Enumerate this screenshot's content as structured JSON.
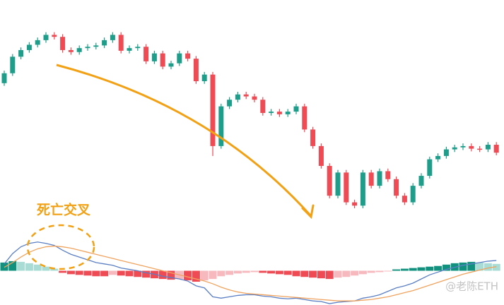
{
  "watermark": "@老陈ETH",
  "chart_data": [
    {
      "type": "candlestick",
      "ylim": [
        0,
        320
      ],
      "up_color": "#1e9e8a",
      "down_color": "#ef4b55",
      "annotations": [
        "死亡交叉"
      ],
      "open": [
        205,
        220,
        245,
        255,
        263,
        270,
        278,
        275,
        255,
        252,
        258,
        260,
        262,
        270,
        278,
        254,
        258,
        260,
        238,
        250,
        230,
        235,
        250,
        242,
        208,
        218,
        110,
        170,
        180,
        188,
        185,
        180,
        160,
        162,
        158,
        162,
        170,
        135,
        110,
        80,
        35,
        70,
        25,
        20,
        70,
        50,
        72,
        60,
        35,
        25,
        50,
        65,
        90,
        95,
        105,
        108,
        110,
        106,
        105,
        112
      ],
      "high": [
        224,
        249,
        259,
        267,
        274,
        282,
        282,
        279,
        259,
        262,
        264,
        266,
        274,
        282,
        282,
        262,
        264,
        264,
        254,
        254,
        239,
        254,
        254,
        246,
        222,
        222,
        174,
        184,
        192,
        192,
        189,
        184,
        166,
        166,
        166,
        174,
        174,
        139,
        114,
        84,
        74,
        74,
        29,
        74,
        74,
        76,
        76,
        64,
        39,
        54,
        69,
        94,
        99,
        109,
        112,
        114,
        114,
        110,
        116,
        116
      ],
      "low": [
        201,
        216,
        241,
        251,
        259,
        266,
        271,
        251,
        248,
        248,
        254,
        256,
        258,
        266,
        250,
        250,
        254,
        234,
        234,
        226,
        226,
        231,
        238,
        204,
        204,
        95,
        106,
        166,
        176,
        181,
        176,
        156,
        156,
        154,
        154,
        158,
        131,
        106,
        76,
        31,
        31,
        21,
        16,
        16,
        46,
        46,
        56,
        31,
        21,
        21,
        46,
        61,
        86,
        91,
        101,
        104,
        102,
        101,
        101,
        96
      ],
      "close": [
        220,
        245,
        255,
        263,
        270,
        278,
        275,
        255,
        252,
        258,
        260,
        262,
        270,
        278,
        254,
        258,
        260,
        238,
        250,
        230,
        235,
        250,
        242,
        208,
        218,
        110,
        170,
        180,
        188,
        185,
        180,
        160,
        162,
        158,
        162,
        170,
        135,
        110,
        80,
        35,
        70,
        25,
        20,
        70,
        50,
        72,
        60,
        35,
        25,
        50,
        65,
        90,
        95,
        105,
        108,
        110,
        106,
        105,
        112,
        100
      ]
    },
    {
      "type": "macd",
      "y2lim": [
        -50,
        50
      ],
      "histogram_colors": [
        "#12917f",
        "#a8dcd4",
        "#ef4b55",
        "#f7b8be"
      ],
      "histogram": [
        12,
        14,
        13,
        11,
        9,
        6,
        3,
        -3,
        -5,
        -6,
        -7,
        -8,
        -8,
        -6,
        -7,
        -8,
        -9,
        -10,
        -11,
        -12,
        -13,
        -12,
        -14,
        -16,
        -14,
        -12,
        -8,
        -6,
        -4,
        -3,
        -2,
        -3,
        -4,
        -5,
        -6,
        -8,
        -9,
        -10,
        -11,
        -12,
        -10,
        -9,
        -7,
        -5,
        -3,
        -2,
        -1,
        2,
        3,
        4,
        5,
        6,
        7,
        9,
        11,
        12,
        13,
        12,
        11,
        10
      ],
      "series": [
        {
          "color": "#5b7fc4",
          "values": [
            10,
            25,
            35,
            40,
            42,
            40,
            37,
            30,
            24,
            20,
            16,
            12,
            10,
            8,
            4,
            2,
            0,
            -3,
            -5,
            -8,
            -10,
            -12,
            -15,
            -22,
            -25,
            -38,
            -40,
            -38,
            -36,
            -35,
            -35,
            -37,
            -38,
            -40,
            -41,
            -40,
            -42,
            -44,
            -45,
            -48,
            -46,
            -45,
            -44,
            -40,
            -38,
            -35,
            -30,
            -25,
            -22,
            -18,
            -12,
            -6,
            -2,
            2,
            5,
            8,
            10,
            12,
            14,
            15
          ]
        },
        {
          "color": "#f0a35e",
          "values": [
            5,
            12,
            20,
            27,
            32,
            35,
            36,
            35,
            33,
            30,
            27,
            24,
            21,
            18,
            15,
            12,
            9,
            6,
            3,
            0,
            -3,
            -6,
            -9,
            -12,
            -15,
            -19,
            -24,
            -28,
            -31,
            -33,
            -34,
            -35,
            -36,
            -37,
            -38,
            -39,
            -40,
            -41,
            -42,
            -43,
            -44,
            -44,
            -44,
            -43,
            -42,
            -40,
            -38,
            -35,
            -32,
            -29,
            -25,
            -21,
            -17,
            -13,
            -9,
            -5,
            -2,
            1,
            4,
            6
          ]
        }
      ]
    }
  ]
}
